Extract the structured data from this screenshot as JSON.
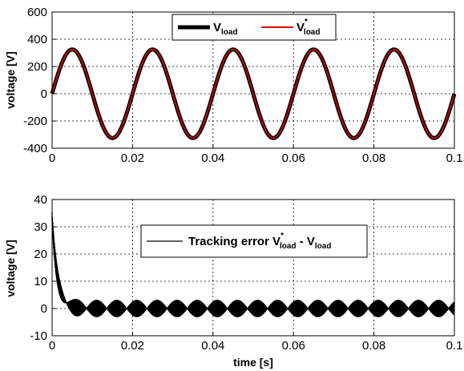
{
  "chart_data": [
    {
      "type": "line",
      "xlabel": "",
      "ylabel": "voltage [V]",
      "xlim": [
        0,
        0.1
      ],
      "ylim": [
        -400,
        600
      ],
      "xticks": [
        "0",
        "0.02",
        "0.04",
        "0.06",
        "0.08",
        "0.1"
      ],
      "yticks": [
        "600",
        "400",
        "200",
        "0",
        "-200",
        "-400"
      ],
      "grid": true,
      "legend_position": "top-center",
      "signal": {
        "kind": "sine",
        "amplitude": 325,
        "frequency_hz": 50
      },
      "series": [
        {
          "name": "V",
          "name_sub": "load",
          "name_sup": "",
          "color": "#000000"
        },
        {
          "name": "V",
          "name_sub": "load",
          "name_sup": "*",
          "color": "#e00000"
        }
      ]
    },
    {
      "type": "line",
      "xlabel": "time [s]",
      "ylabel": "voltage [V]",
      "xlim": [
        0,
        0.1
      ],
      "ylim": [
        -10,
        40
      ],
      "xticks": [
        "0",
        "0.02",
        "0.04",
        "0.06",
        "0.08",
        "0.1"
      ],
      "yticks": [
        "40",
        "30",
        "20",
        "10",
        "0",
        "-10"
      ],
      "grid": true,
      "legend_position": "top-center",
      "error": {
        "initial": 33,
        "decay_time_s": 0.0013,
        "ripple_amplitude": 3
      },
      "series": [
        {
          "name_prefix": "Tracking error V",
          "name_sup": "*",
          "name_sub1": "load",
          "name_mid": " - V",
          "name_sub2": "load",
          "color": "#000000"
        }
      ]
    }
  ]
}
